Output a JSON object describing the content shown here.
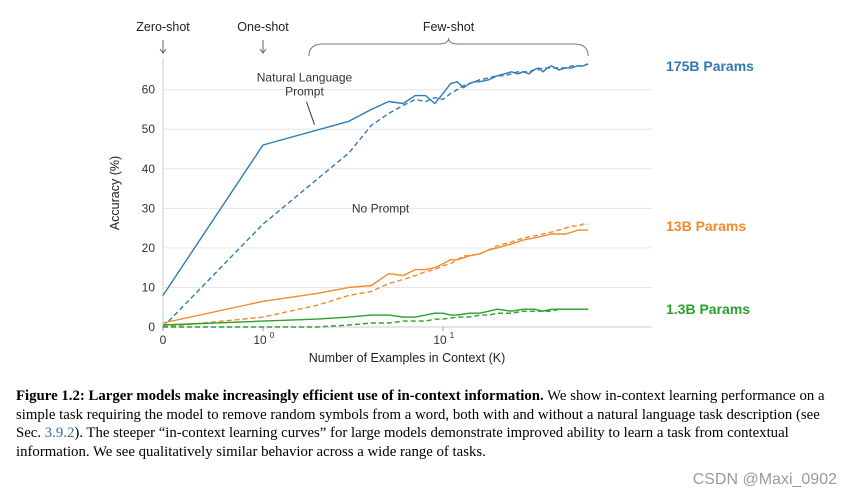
{
  "chart_data": {
    "type": "line",
    "xscale": "log-with-zero",
    "xlabel": "Number of Examples in Context  (K)",
    "ylabel": "Accuracy (%)",
    "ylim": [
      0,
      68
    ],
    "xlim": [
      0,
      64
    ],
    "yticks": [
      0,
      10,
      20,
      30,
      40,
      50,
      60
    ],
    "xticks": [
      {
        "value": 0,
        "base": "0",
        "exp": ""
      },
      {
        "value": 1,
        "base": "10",
        "exp": "0"
      },
      {
        "value": 10,
        "base": "10",
        "exp": "1"
      }
    ],
    "regions": [
      {
        "label": "Zero-shot",
        "type": "arrow",
        "x": 0
      },
      {
        "label": "One-shot",
        "type": "arrow",
        "x": 1
      },
      {
        "label": "Few-shot",
        "type": "brace",
        "x": [
          1.8,
          64
        ]
      }
    ],
    "annotations": [
      {
        "text": "Natural Language\nPrompt",
        "x": 1.7,
        "y": 62
      },
      {
        "text": "No Prompt",
        "x": 4.5,
        "y": 29
      }
    ],
    "series": [
      {
        "name": "175B Params",
        "model": "175B",
        "prompt": "Natural Language",
        "style": "solid",
        "color": "#2f7bb5",
        "points": [
          [
            0,
            8
          ],
          [
            1,
            46
          ],
          [
            3,
            52
          ],
          [
            4,
            55
          ],
          [
            5,
            57
          ],
          [
            6,
            56.5
          ],
          [
            7,
            58.5
          ],
          [
            8,
            58.5
          ],
          [
            9,
            56.5
          ],
          [
            10,
            59
          ],
          [
            11,
            61.5
          ],
          [
            12,
            62
          ],
          [
            13,
            60.5
          ],
          [
            14,
            61.5
          ],
          [
            15,
            62
          ],
          [
            16,
            62
          ],
          [
            18,
            62.5
          ],
          [
            20,
            63.5
          ],
          [
            22,
            64
          ],
          [
            24,
            64.5
          ],
          [
            26,
            64
          ],
          [
            28,
            64.5
          ],
          [
            30,
            64
          ],
          [
            32,
            65
          ],
          [
            34,
            65.5
          ],
          [
            36,
            64.5
          ],
          [
            38,
            65.5
          ],
          [
            40,
            66
          ],
          [
            44,
            65
          ],
          [
            48,
            65.5
          ],
          [
            52,
            65.5
          ],
          [
            56,
            66
          ],
          [
            60,
            66
          ],
          [
            64,
            66.5
          ]
        ]
      },
      {
        "name": "175B Params",
        "model": "175B",
        "prompt": "No Prompt",
        "style": "dashed",
        "color": "#2f7bb5",
        "points": [
          [
            0,
            0
          ],
          [
            1,
            26
          ],
          [
            3,
            44
          ],
          [
            4,
            51
          ],
          [
            5,
            54
          ],
          [
            6,
            56
          ],
          [
            7,
            57.5
          ],
          [
            8,
            57
          ],
          [
            9,
            58
          ],
          [
            10,
            57.5
          ],
          [
            11,
            59
          ],
          [
            12,
            60
          ],
          [
            13,
            61
          ],
          [
            14,
            61.5
          ],
          [
            15,
            62
          ],
          [
            16,
            62.5
          ],
          [
            18,
            63
          ],
          [
            20,
            63.5
          ],
          [
            22,
            63.5
          ],
          [
            24,
            64
          ],
          [
            26,
            64.5
          ],
          [
            28,
            64.5
          ],
          [
            30,
            64.5
          ],
          [
            32,
            65
          ],
          [
            34,
            65
          ],
          [
            36,
            65.5
          ],
          [
            38,
            65.5
          ],
          [
            40,
            65.5
          ],
          [
            44,
            65.5
          ],
          [
            48,
            65.5
          ],
          [
            52,
            66
          ],
          [
            56,
            66
          ],
          [
            60,
            66
          ],
          [
            64,
            66.5
          ]
        ]
      },
      {
        "name": "13B Params",
        "model": "13B",
        "prompt": "Natural Language",
        "style": "solid",
        "color": "#f28a2a",
        "points": [
          [
            0,
            1
          ],
          [
            1,
            6.5
          ],
          [
            2,
            8.5
          ],
          [
            3,
            10
          ],
          [
            4,
            10.5
          ],
          [
            5,
            13.5
          ],
          [
            6,
            13
          ],
          [
            7,
            14.5
          ],
          [
            8,
            14.5
          ],
          [
            9,
            15
          ],
          [
            10,
            16
          ],
          [
            11,
            17
          ],
          [
            12,
            17
          ],
          [
            13,
            17.5
          ],
          [
            14,
            18
          ],
          [
            16,
            18.5
          ],
          [
            18,
            19.5
          ],
          [
            20,
            20
          ],
          [
            24,
            21
          ],
          [
            28,
            22
          ],
          [
            32,
            22.5
          ],
          [
            36,
            23
          ],
          [
            40,
            23.5
          ],
          [
            44,
            23.5
          ],
          [
            48,
            23.5
          ],
          [
            52,
            24
          ],
          [
            56,
            24.5
          ],
          [
            60,
            24.5
          ],
          [
            64,
            24.5
          ]
        ]
      },
      {
        "name": "13B Params",
        "model": "13B",
        "prompt": "No Prompt",
        "style": "dashed",
        "color": "#f28a2a",
        "points": [
          [
            0,
            0
          ],
          [
            1,
            2.5
          ],
          [
            2,
            5.5
          ],
          [
            3,
            8
          ],
          [
            4,
            9
          ],
          [
            5,
            11
          ],
          [
            6,
            12
          ],
          [
            7,
            13
          ],
          [
            8,
            14
          ],
          [
            9,
            14.5
          ],
          [
            10,
            15.5
          ],
          [
            11,
            16
          ],
          [
            12,
            17
          ],
          [
            13,
            18
          ],
          [
            14,
            18
          ],
          [
            16,
            18.5
          ],
          [
            18,
            19.5
          ],
          [
            20,
            20.5
          ],
          [
            24,
            21.5
          ],
          [
            28,
            22.5
          ],
          [
            32,
            23
          ],
          [
            36,
            23.5
          ],
          [
            40,
            24
          ],
          [
            44,
            24.5
          ],
          [
            48,
            25
          ],
          [
            52,
            25.5
          ],
          [
            56,
            25.5
          ],
          [
            60,
            26
          ],
          [
            64,
            26
          ]
        ]
      },
      {
        "name": "1.3B Params",
        "model": "1.3B",
        "prompt": "Natural Language",
        "style": "solid",
        "color": "#2aa02a",
        "points": [
          [
            0,
            0.5
          ],
          [
            1,
            1.5
          ],
          [
            2,
            2
          ],
          [
            3,
            2.5
          ],
          [
            4,
            3
          ],
          [
            5,
            3
          ],
          [
            6,
            2.5
          ],
          [
            7,
            2.5
          ],
          [
            8,
            3
          ],
          [
            9,
            3.5
          ],
          [
            10,
            3.5
          ],
          [
            11,
            3
          ],
          [
            12,
            3
          ],
          [
            14,
            3.5
          ],
          [
            16,
            3.5
          ],
          [
            18,
            4
          ],
          [
            20,
            4.5
          ],
          [
            24,
            4
          ],
          [
            28,
            4.5
          ],
          [
            32,
            4.5
          ],
          [
            36,
            4
          ],
          [
            40,
            4.5
          ],
          [
            44,
            4.5
          ],
          [
            48,
            4.5
          ],
          [
            52,
            4.5
          ],
          [
            56,
            4.5
          ],
          [
            60,
            4.5
          ],
          [
            64,
            4.5
          ]
        ]
      },
      {
        "name": "1.3B Params",
        "model": "1.3B",
        "prompt": "No Prompt",
        "style": "dashed",
        "color": "#2aa02a",
        "points": [
          [
            0,
            0
          ],
          [
            1,
            0
          ],
          [
            2,
            0
          ],
          [
            3,
            0.5
          ],
          [
            4,
            1
          ],
          [
            5,
            1
          ],
          [
            6,
            1.5
          ],
          [
            7,
            1.5
          ],
          [
            8,
            1.5
          ],
          [
            9,
            2
          ],
          [
            10,
            2
          ],
          [
            12,
            2.5
          ],
          [
            14,
            2.5
          ],
          [
            16,
            3
          ],
          [
            18,
            3
          ],
          [
            20,
            3.5
          ],
          [
            24,
            3.5
          ],
          [
            28,
            4
          ],
          [
            32,
            4
          ],
          [
            36,
            4
          ],
          [
            40,
            4
          ],
          [
            44,
            4.5
          ],
          [
            48,
            4.5
          ],
          [
            52,
            4.5
          ],
          [
            56,
            4.5
          ],
          [
            60,
            4.5
          ],
          [
            64,
            4.5
          ]
        ]
      }
    ],
    "legend": [
      {
        "label": "175B Params",
        "color": "#2f7bb5"
      },
      {
        "label": "13B Params",
        "color": "#f28a2a"
      },
      {
        "label": "1.3B Params",
        "color": "#2aa02a"
      }
    ]
  },
  "caption": {
    "figure_label": "Figure 1.2:",
    "bold_text": "Larger models make increasingly efficient use of in-context information.",
    "body_pre": "We show in-context learning performance on a simple task requiring the model to remove random symbols from a word, both with and without a natural language task description (see Sec.",
    "ref": "3.9.2",
    "body_post": "). The steeper “in-context learning curves” for large models demonstrate improved ability to learn a task from contextual information. We see qualitatively similar behavior across a wide range of tasks."
  },
  "watermark": "CSDN @Maxi_0902"
}
